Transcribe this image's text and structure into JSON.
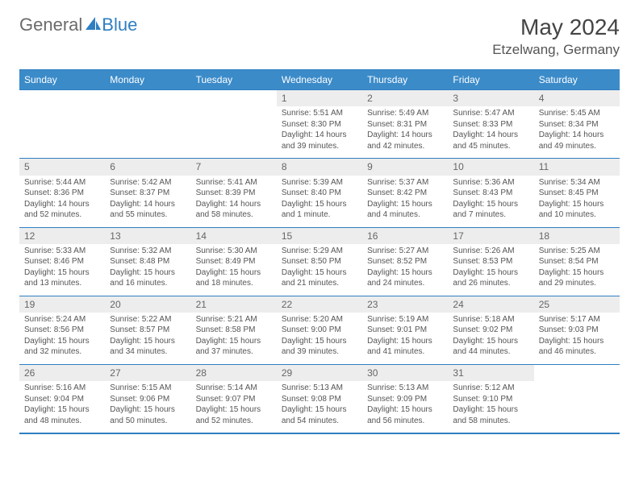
{
  "logo": {
    "part1": "General",
    "part2": "Blue"
  },
  "title": "May 2024",
  "location": "Etzelwang, Germany",
  "colors": {
    "header_bg": "#3b8bc9",
    "border": "#2f7fc2",
    "daynum_bg": "#ededed",
    "text": "#555555"
  },
  "day_headers": [
    "Sunday",
    "Monday",
    "Tuesday",
    "Wednesday",
    "Thursday",
    "Friday",
    "Saturday"
  ],
  "weeks": [
    [
      null,
      null,
      null,
      {
        "n": "1",
        "sr": "5:51 AM",
        "ss": "8:30 PM",
        "dl": "14 hours and 39 minutes."
      },
      {
        "n": "2",
        "sr": "5:49 AM",
        "ss": "8:31 PM",
        "dl": "14 hours and 42 minutes."
      },
      {
        "n": "3",
        "sr": "5:47 AM",
        "ss": "8:33 PM",
        "dl": "14 hours and 45 minutes."
      },
      {
        "n": "4",
        "sr": "5:45 AM",
        "ss": "8:34 PM",
        "dl": "14 hours and 49 minutes."
      }
    ],
    [
      {
        "n": "5",
        "sr": "5:44 AM",
        "ss": "8:36 PM",
        "dl": "14 hours and 52 minutes."
      },
      {
        "n": "6",
        "sr": "5:42 AM",
        "ss": "8:37 PM",
        "dl": "14 hours and 55 minutes."
      },
      {
        "n": "7",
        "sr": "5:41 AM",
        "ss": "8:39 PM",
        "dl": "14 hours and 58 minutes."
      },
      {
        "n": "8",
        "sr": "5:39 AM",
        "ss": "8:40 PM",
        "dl": "15 hours and 1 minute."
      },
      {
        "n": "9",
        "sr": "5:37 AM",
        "ss": "8:42 PM",
        "dl": "15 hours and 4 minutes."
      },
      {
        "n": "10",
        "sr": "5:36 AM",
        "ss": "8:43 PM",
        "dl": "15 hours and 7 minutes."
      },
      {
        "n": "11",
        "sr": "5:34 AM",
        "ss": "8:45 PM",
        "dl": "15 hours and 10 minutes."
      }
    ],
    [
      {
        "n": "12",
        "sr": "5:33 AM",
        "ss": "8:46 PM",
        "dl": "15 hours and 13 minutes."
      },
      {
        "n": "13",
        "sr": "5:32 AM",
        "ss": "8:48 PM",
        "dl": "15 hours and 16 minutes."
      },
      {
        "n": "14",
        "sr": "5:30 AM",
        "ss": "8:49 PM",
        "dl": "15 hours and 18 minutes."
      },
      {
        "n": "15",
        "sr": "5:29 AM",
        "ss": "8:50 PM",
        "dl": "15 hours and 21 minutes."
      },
      {
        "n": "16",
        "sr": "5:27 AM",
        "ss": "8:52 PM",
        "dl": "15 hours and 24 minutes."
      },
      {
        "n": "17",
        "sr": "5:26 AM",
        "ss": "8:53 PM",
        "dl": "15 hours and 26 minutes."
      },
      {
        "n": "18",
        "sr": "5:25 AM",
        "ss": "8:54 PM",
        "dl": "15 hours and 29 minutes."
      }
    ],
    [
      {
        "n": "19",
        "sr": "5:24 AM",
        "ss": "8:56 PM",
        "dl": "15 hours and 32 minutes."
      },
      {
        "n": "20",
        "sr": "5:22 AM",
        "ss": "8:57 PM",
        "dl": "15 hours and 34 minutes."
      },
      {
        "n": "21",
        "sr": "5:21 AM",
        "ss": "8:58 PM",
        "dl": "15 hours and 37 minutes."
      },
      {
        "n": "22",
        "sr": "5:20 AM",
        "ss": "9:00 PM",
        "dl": "15 hours and 39 minutes."
      },
      {
        "n": "23",
        "sr": "5:19 AM",
        "ss": "9:01 PM",
        "dl": "15 hours and 41 minutes."
      },
      {
        "n": "24",
        "sr": "5:18 AM",
        "ss": "9:02 PM",
        "dl": "15 hours and 44 minutes."
      },
      {
        "n": "25",
        "sr": "5:17 AM",
        "ss": "9:03 PM",
        "dl": "15 hours and 46 minutes."
      }
    ],
    [
      {
        "n": "26",
        "sr": "5:16 AM",
        "ss": "9:04 PM",
        "dl": "15 hours and 48 minutes."
      },
      {
        "n": "27",
        "sr": "5:15 AM",
        "ss": "9:06 PM",
        "dl": "15 hours and 50 minutes."
      },
      {
        "n": "28",
        "sr": "5:14 AM",
        "ss": "9:07 PM",
        "dl": "15 hours and 52 minutes."
      },
      {
        "n": "29",
        "sr": "5:13 AM",
        "ss": "9:08 PM",
        "dl": "15 hours and 54 minutes."
      },
      {
        "n": "30",
        "sr": "5:13 AM",
        "ss": "9:09 PM",
        "dl": "15 hours and 56 minutes."
      },
      {
        "n": "31",
        "sr": "5:12 AM",
        "ss": "9:10 PM",
        "dl": "15 hours and 58 minutes."
      },
      null
    ]
  ],
  "labels": {
    "sunrise": "Sunrise: ",
    "sunset": "Sunset: ",
    "daylight": "Daylight: "
  }
}
